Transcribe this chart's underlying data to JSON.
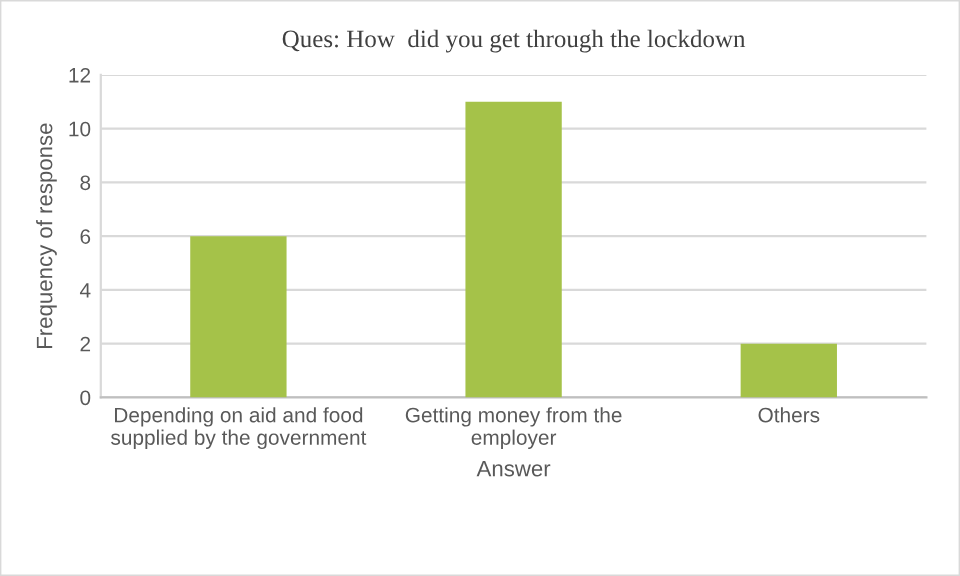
{
  "chart_data": {
    "type": "bar",
    "title": "Ques: How  did you get through the lockdown",
    "xlabel": "Answer",
    "ylabel": "Frequency of response",
    "categories": [
      "Depending on aid and food supplied by the government",
      "Getting money from the employer",
      "Others"
    ],
    "values": [
      6,
      11,
      2
    ],
    "color": "#a5c249",
    "ylim": [
      0,
      12
    ],
    "yticks": [
      0,
      2,
      4,
      6,
      8,
      10,
      12
    ],
    "grid": "y",
    "legend": false
  }
}
